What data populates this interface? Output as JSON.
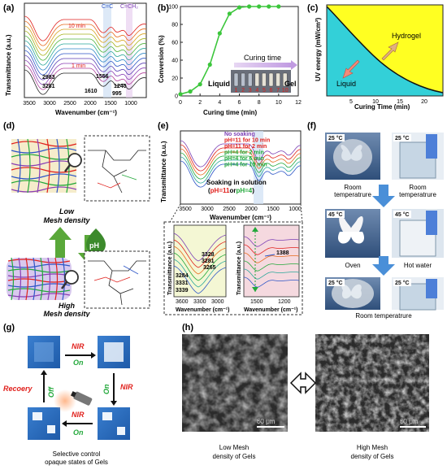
{
  "panels": {
    "a": {
      "label": "(a)",
      "ylabel": "Transmittance (a.u.)",
      "xlabel": "Wavenumber (cm⁻¹)",
      "xticks": [
        "3500",
        "3000",
        "2500",
        "2000",
        "1500",
        "1000"
      ],
      "time_top": "10 min",
      "time_bottom": "1 min",
      "annotations": [
        "2983",
        "3281",
        "1610",
        "1556",
        "1240",
        "995"
      ],
      "band_cc": "C=C",
      "band_cch2": "C=CH₂"
    },
    "b": {
      "label": "(b)",
      "ylabel": "Conversion (%)",
      "xlabel": "Curing time (min)",
      "legend": "Curing time",
      "liquid": "Liquid",
      "gel": "Gel",
      "vial_numbers": [
        "1",
        "2",
        "3",
        "4",
        "5",
        "6",
        "7",
        "10"
      ]
    },
    "c": {
      "label": "(c)",
      "ylabel": "UV energy (mW/cm²)",
      "xlabel": "Curing Time (min)",
      "xticks": [
        "5",
        "10",
        "15",
        "20"
      ],
      "hydrogel": "Hydrogel",
      "liquid": "Liquid"
    },
    "d": {
      "label": "(d)",
      "low_1": "Low",
      "low_2": "Mesh density",
      "high_1": "High",
      "high_2": "Mesh density",
      "ph": "pH"
    },
    "e": {
      "label": "(e)",
      "ylabel": "Transmittance (a.u.)",
      "xlabel": "Wavenumber (cm⁻¹)",
      "xticks": [
        "3500",
        "3000",
        "2500",
        "2000",
        "1500",
        "1000"
      ],
      "legend": [
        {
          "text": "No soaking",
          "color": "#7b3fb5"
        },
        {
          "text": "pH=11 for 10 min",
          "color": "#e0201c"
        },
        {
          "text": "pH=11 for 2 min",
          "color": "#e0201c"
        },
        {
          "text": "pH=4 for 2 min",
          "color": "#22a83a"
        },
        {
          "text": "pH=4 for 6 min",
          "color": "#22a83a"
        },
        {
          "text": "pH=4 for 10 min",
          "color": "#22a83a"
        }
      ],
      "soak_title": "Soaking in solution",
      "soak_open": "(",
      "soak_ph11": "pH=11",
      "soak_or": "or",
      "soak_ph4": "pH=4",
      "soak_close": ")",
      "inset_left": {
        "ylabel": "Transmittance (a.u.)",
        "xlabel": "Wavenumber (cm⁻¹)",
        "xticks": [
          "3600",
          "3300",
          "3000"
        ],
        "annotations": [
          "3328",
          "3281",
          "3265",
          "3284",
          "3331",
          "3339"
        ]
      },
      "inset_right": {
        "ylabel": "Transmittance (a.u.)",
        "xlabel": "Wavenumber (cm⁻¹)",
        "xticks": [
          "1500",
          "1200"
        ],
        "annotations": [
          "1388"
        ]
      }
    },
    "f": {
      "label": "(f)",
      "temps": [
        "25 °C",
        "25 °C",
        "45 °C",
        "45 °C",
        "25 °C",
        "25 °C"
      ],
      "room_temp_1": "Room",
      "room_temp_2": "temperatrure",
      "oven": "Oven",
      "hot_water": "Hot water",
      "room_temp_bottom": "Room temperatrure"
    },
    "g": {
      "label": "(g)",
      "nir": "NIR",
      "on": "On",
      "off": "Off",
      "recovery": "Recoery",
      "caption_1": "Selective control",
      "caption_2": "opaque states of Gels"
    },
    "h": {
      "label": "(h)",
      "scale": "60 μm",
      "low_1": "Low Mesh",
      "low_2": "density of Gels",
      "high_1": "High Mesh",
      "high_2": "density of Gels"
    }
  },
  "chart_data": [
    {
      "type": "line",
      "panel": "b",
      "x": [
        0,
        1,
        2,
        3,
        4,
        5,
        6,
        7,
        8,
        9,
        10
      ],
      "series": [
        {
          "values": [
            2,
            5,
            13,
            35,
            70,
            92,
            99,
            100,
            100,
            100,
            100
          ]
        }
      ],
      "xticks": [
        0,
        2,
        4,
        6,
        8,
        10,
        12
      ],
      "yticks": [
        0,
        20,
        40,
        60,
        80,
        100
      ],
      "xlim": [
        0,
        12
      ],
      "ylim": [
        0,
        100
      ],
      "xlabel": "Curing time (min)",
      "ylabel": "Conversion (%)",
      "color": "#3cc63c"
    }
  ],
  "colors": {
    "hydrogel_yellow": "#ffff22",
    "liquid_cyan": "#33d0d8",
    "green_arrow": "#5aa83a",
    "blue_arrow": "#4a8fd8",
    "red_text": "#e0201c",
    "green_text": "#22a83a"
  }
}
